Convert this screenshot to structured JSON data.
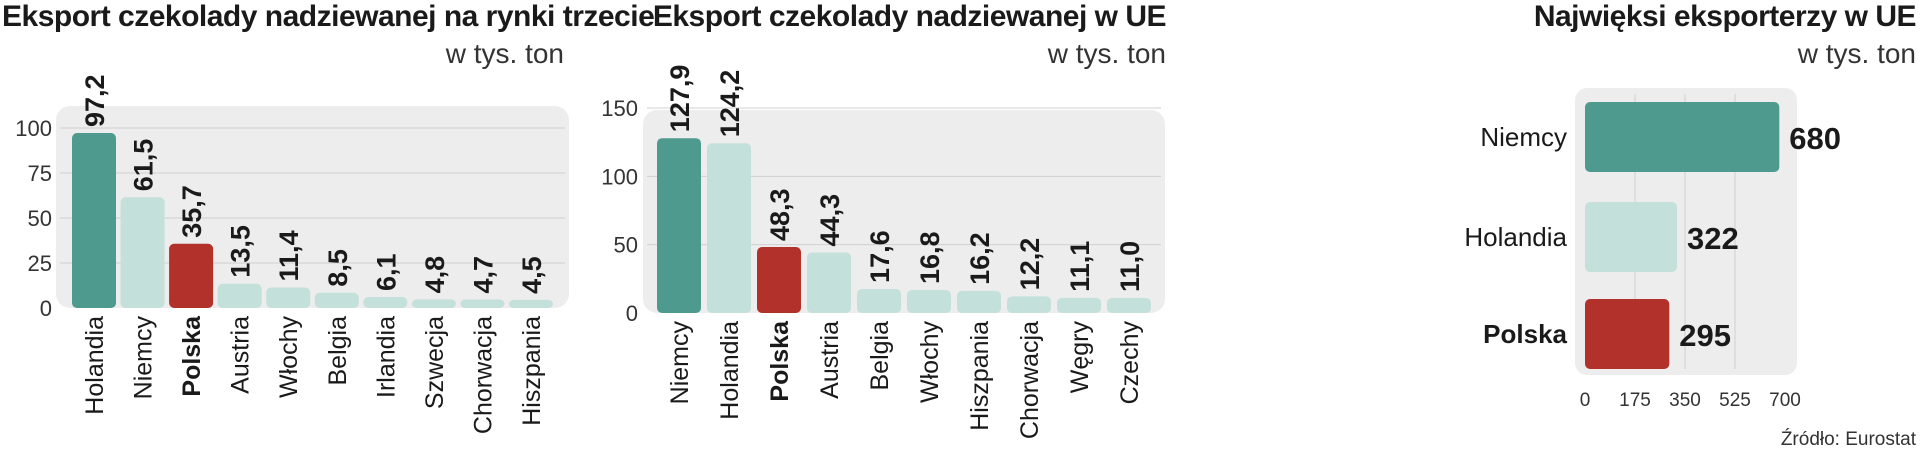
{
  "colors": {
    "highlight_dark": "#4e9a8f",
    "light": "#c4e0da",
    "poland": "#b2312b",
    "plot_bg": "#ededed",
    "text": "#1a1a1a"
  },
  "chart_data": [
    {
      "type": "bar",
      "title": "Eksport czekolady nadziewanej na rynki trzecie",
      "unit": "w tys. ton",
      "categories": [
        "Holandia",
        "Niemcy",
        "Polska",
        "Austria",
        "Włochy",
        "Belgia",
        "Irlandia",
        "Szwecja",
        "Chorwacja",
        "Hiszpania"
      ],
      "values": [
        97.2,
        61.5,
        35.7,
        13.5,
        11.4,
        8.5,
        6.1,
        4.8,
        4.7,
        4.5
      ],
      "value_labels": [
        "97,2",
        "61,5",
        "35,7",
        "13,5",
        "11,4",
        "8,5",
        "6,1",
        "4,8",
        "4,7",
        "4,5"
      ],
      "colors": [
        "highlight_dark",
        "light",
        "poland",
        "light",
        "light",
        "light",
        "light",
        "light",
        "light",
        "light"
      ],
      "highlight_category": "Polska",
      "yticks": [
        0,
        25,
        50,
        75,
        100
      ],
      "ylim": [
        0,
        100
      ],
      "grid": true
    },
    {
      "type": "bar",
      "title": "Eksport czekolady nadziewanej w UE",
      "unit": "w tys. ton",
      "categories": [
        "Niemcy",
        "Holandia",
        "Polska",
        "Austria",
        "Belgia",
        "Włochy",
        "Hiszpania",
        "Chorwacja",
        "Węgry",
        "Czechy"
      ],
      "values": [
        127.9,
        124.2,
        48.3,
        44.3,
        17.6,
        16.8,
        16.2,
        12.2,
        11.1,
        11.0
      ],
      "value_labels": [
        "127,9",
        "124,2",
        "48,3",
        "44,3",
        "17,6",
        "16,8",
        "16,2",
        "12,2",
        "11,1",
        "11,0"
      ],
      "colors": [
        "highlight_dark",
        "light",
        "poland",
        "light",
        "light",
        "light",
        "light",
        "light",
        "light",
        "light"
      ],
      "highlight_category": "Polska",
      "yticks": [
        0,
        50,
        100,
        150
      ],
      "ylim": [
        0,
        150
      ],
      "grid": true
    },
    {
      "type": "bar",
      "orientation": "horizontal",
      "title": "Najwięksi eksporterzy w UE",
      "unit": "w tys. ton",
      "categories": [
        "Niemcy",
        "Holandia",
        "Polska"
      ],
      "values": [
        680,
        322,
        295
      ],
      "value_labels": [
        "680",
        "322",
        "295"
      ],
      "colors": [
        "highlight_dark",
        "light",
        "poland"
      ],
      "highlight_category": "Polska",
      "xticks": [
        0,
        175,
        350,
        525,
        700
      ],
      "xlim": [
        0,
        700
      ],
      "grid": true
    }
  ],
  "source": "Źródło: Eurostat"
}
